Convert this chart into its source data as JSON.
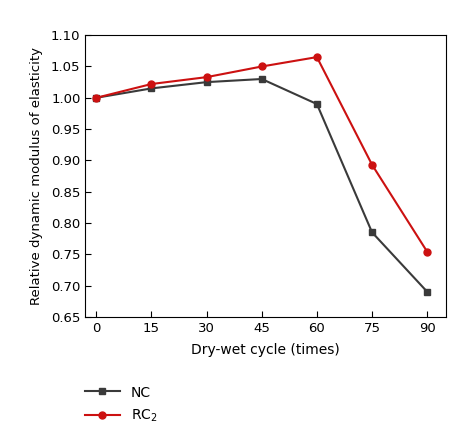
{
  "x": [
    0,
    15,
    30,
    45,
    60,
    75,
    90
  ],
  "NC_y": [
    1.0,
    1.015,
    1.025,
    1.03,
    0.99,
    0.785,
    0.69
  ],
  "RC2_y": [
    1.0,
    1.022,
    1.033,
    1.05,
    1.065,
    0.893,
    0.754
  ],
  "NC_color": "#3a3a3a",
  "RC2_color": "#cc1111",
  "NC_label": "NC",
  "RC2_label": "RC$_2$",
  "xlabel": "Dry-wet cycle (times)",
  "ylabel": "Relative dynamic modulus of elasticity",
  "xlim": [
    -3,
    95
  ],
  "ylim": [
    0.65,
    1.1
  ],
  "yticks": [
    0.65,
    0.7,
    0.75,
    0.8,
    0.85,
    0.9,
    0.95,
    1.0,
    1.05,
    1.1
  ],
  "xticks": [
    0,
    15,
    30,
    45,
    60,
    75,
    90
  ],
  "background_color": "#ffffff"
}
